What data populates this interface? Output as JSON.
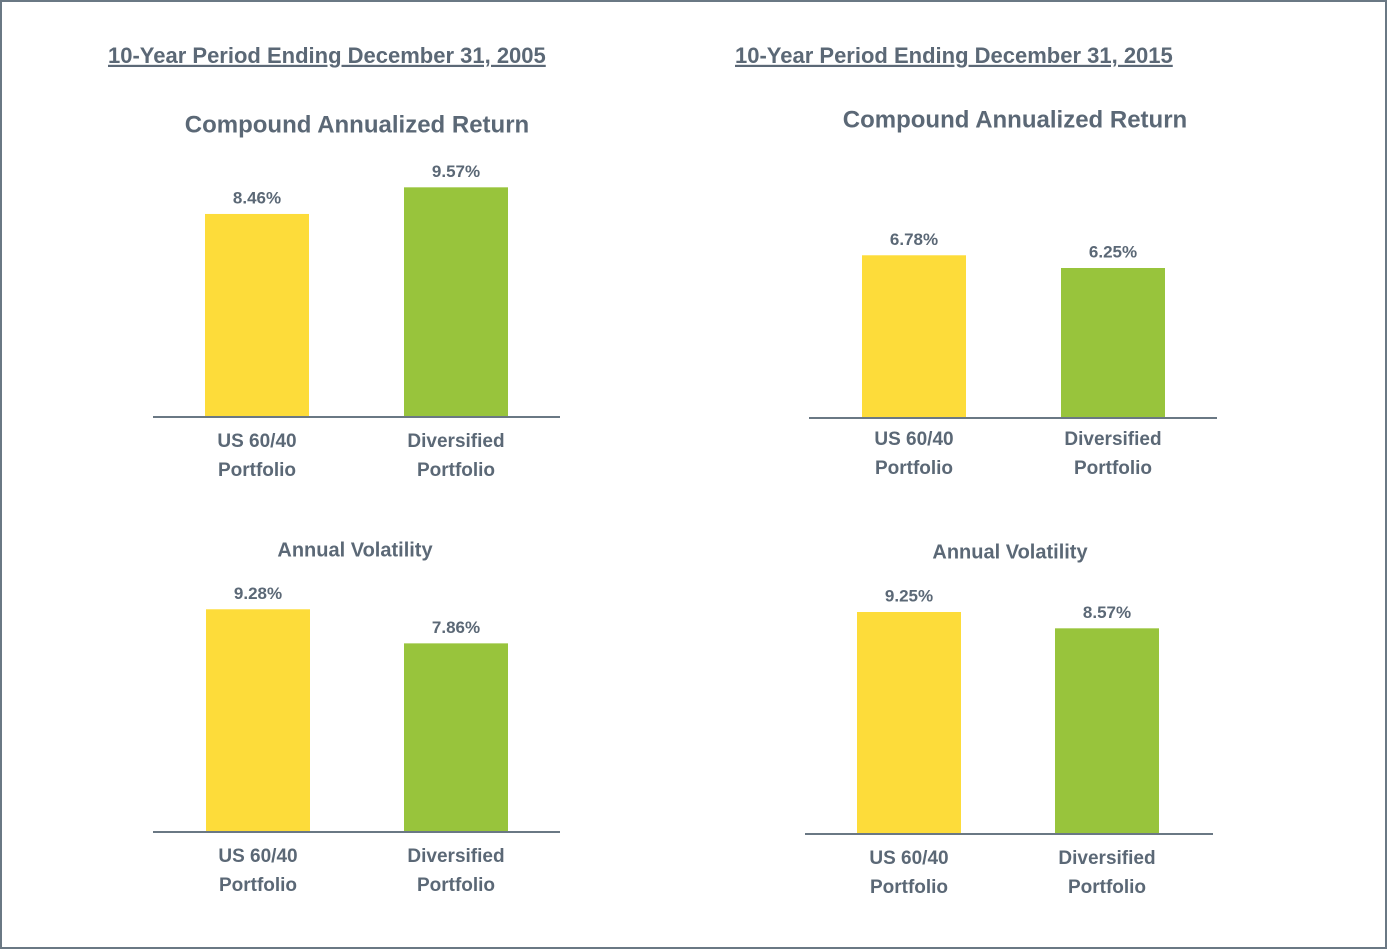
{
  "headings": [
    "10-Year Period Ending December 31, 2005",
    "10-Year Period Ending December 31, 2015"
  ],
  "chart_data": [
    {
      "type": "bar",
      "title": "Compound Annualized Return",
      "categories": [
        [
          "US 60/40",
          "Portfolio"
        ],
        [
          "Diversified",
          "Portfolio"
        ]
      ],
      "values": [
        8.46,
        9.57
      ],
      "value_labels": [
        "8.46%",
        "9.57%"
      ],
      "colors": [
        "#fddc3a",
        "#98c43c"
      ]
    },
    {
      "type": "bar",
      "title": "Compound Annualized Return",
      "categories": [
        [
          "US 60/40",
          "Portfolio"
        ],
        [
          "Diversified",
          "Portfolio"
        ]
      ],
      "values": [
        6.78,
        6.25
      ],
      "value_labels": [
        "6.78%",
        "6.25%"
      ],
      "colors": [
        "#fddc3a",
        "#98c43c"
      ]
    },
    {
      "type": "bar",
      "title": "Annual Volatility",
      "categories": [
        [
          "US 60/40",
          "Portfolio"
        ],
        [
          "Diversified",
          "Portfolio"
        ]
      ],
      "values": [
        9.28,
        7.86
      ],
      "value_labels": [
        "9.28%",
        "7.86%"
      ],
      "colors": [
        "#fddc3a",
        "#98c43c"
      ]
    },
    {
      "type": "bar",
      "title": "Annual Volatility",
      "categories": [
        [
          "US 60/40",
          "Portfolio"
        ],
        [
          "Diversified",
          "Portfolio"
        ]
      ],
      "values": [
        9.25,
        8.57
      ],
      "value_labels": [
        "9.25%",
        "8.57%"
      ],
      "colors": [
        "#fddc3a",
        "#98c43c"
      ]
    }
  ]
}
